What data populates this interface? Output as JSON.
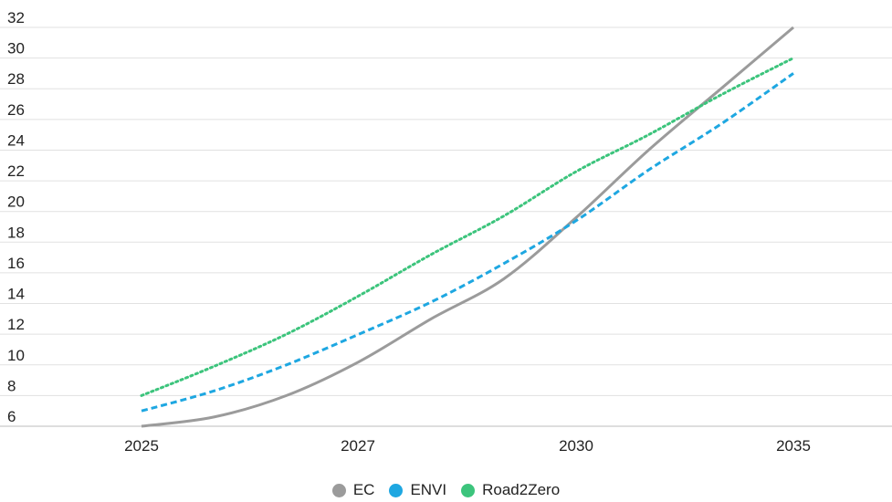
{
  "chart_data": {
    "type": "line",
    "title": "",
    "xlabel": "",
    "ylabel": "",
    "x_categories": [
      "2025",
      "2027",
      "2030",
      "2035"
    ],
    "y_ticks": [
      6,
      8,
      10,
      12,
      14,
      16,
      18,
      20,
      22,
      24,
      26,
      28,
      30,
      32
    ],
    "ylim": [
      6,
      32
    ],
    "grid": true,
    "legend_position": "bottom-center",
    "series": [
      {
        "name": "EC",
        "color": "#9b9b9b",
        "style": "solid",
        "points": [
          [
            2025,
            6
          ],
          [
            2026,
            6.6
          ],
          [
            2027,
            8
          ],
          [
            2028,
            10.2
          ],
          [
            2029,
            13
          ],
          [
            2030,
            15.6
          ],
          [
            2031,
            19.6
          ],
          [
            2032,
            24
          ],
          [
            2033,
            28
          ],
          [
            2034,
            32
          ]
        ]
      },
      {
        "name": "ENVI",
        "color": "#1ea7e1",
        "style": "dashed",
        "points": [
          [
            2025,
            7
          ],
          [
            2026,
            8.3
          ],
          [
            2027,
            10
          ],
          [
            2028,
            12
          ],
          [
            2029,
            14.1
          ],
          [
            2030,
            16.6
          ],
          [
            2031,
            19.4
          ],
          [
            2032,
            22.7
          ],
          [
            2033,
            25.7
          ],
          [
            2034,
            29
          ]
        ]
      },
      {
        "name": "Road2Zero",
        "color": "#3cc47c",
        "style": "dotted",
        "points": [
          [
            2025,
            8
          ],
          [
            2026,
            9.9
          ],
          [
            2027,
            12
          ],
          [
            2028,
            14.5
          ],
          [
            2029,
            17.2
          ],
          [
            2030,
            19.7
          ],
          [
            2031,
            22.6
          ],
          [
            2032,
            25
          ],
          [
            2033,
            27.6
          ],
          [
            2034,
            30
          ]
        ]
      }
    ]
  }
}
